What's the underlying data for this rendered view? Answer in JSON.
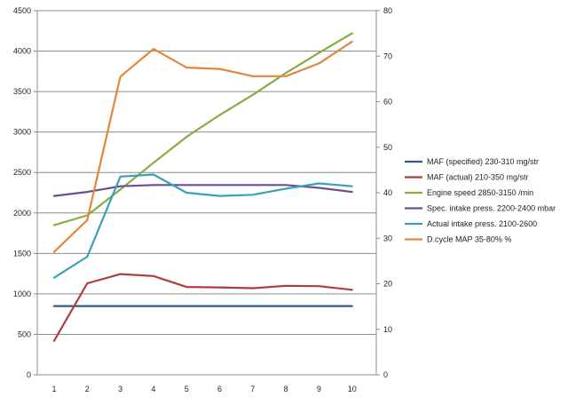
{
  "chart_data": {
    "type": "line",
    "x": [
      1,
      2,
      3,
      4,
      5,
      6,
      7,
      8,
      9,
      10
    ],
    "x_tick_labels": [
      "1",
      "2",
      "3",
      "4",
      "5",
      "6",
      "7",
      "8",
      "9",
      "10"
    ],
    "left_axis": {
      "ylim": [
        0,
        4500
      ],
      "ticks": [
        0,
        500,
        1000,
        1500,
        2000,
        2500,
        3000,
        3500,
        4000,
        4500
      ]
    },
    "right_axis": {
      "ylim": [
        0,
        80
      ],
      "ticks": [
        0,
        10,
        20,
        30,
        40,
        50,
        60,
        70,
        80
      ]
    },
    "grid": "horizontal",
    "legend_position": "right",
    "series": [
      {
        "name": "MAF (specified) 230-310  mg/str",
        "axis": "left",
        "color": "#2b5d8b",
        "values": [
          850,
          850,
          850,
          850,
          850,
          850,
          850,
          850,
          850,
          850
        ]
      },
      {
        "name": "MAF (actual) 210-350  mg/str",
        "axis": "left",
        "color": "#b23b3b",
        "values": [
          420,
          1130,
          1245,
          1220,
          1085,
          1080,
          1070,
          1100,
          1095,
          1050
        ]
      },
      {
        "name": "Engine speed 2850-3150  /min",
        "axis": "left",
        "color": "#86ac44",
        "values": [
          1850,
          1970,
          2290,
          2620,
          2940,
          3210,
          3460,
          3730,
          3980,
          4220
        ]
      },
      {
        "name": "Spec. intake press. 2200-2400  mbar",
        "axis": "left",
        "color": "#6d4c97",
        "values": [
          2210,
          2260,
          2330,
          2345,
          2345,
          2345,
          2345,
          2345,
          2310,
          2260
        ]
      },
      {
        "name": "Actual intake press. 2100-2600",
        "axis": "left",
        "color": "#3a9fb9",
        "values": [
          1200,
          1460,
          2450,
          2475,
          2250,
          2210,
          2225,
          2300,
          2365,
          2330
        ]
      },
      {
        "name": "D.cycle MAP 35-80%  %",
        "axis": "right",
        "color": "#e2873a",
        "values": [
          27,
          34,
          65.5,
          71.6,
          67.5,
          67.2,
          65.6,
          65.6,
          68.4,
          73.2
        ]
      }
    ]
  }
}
